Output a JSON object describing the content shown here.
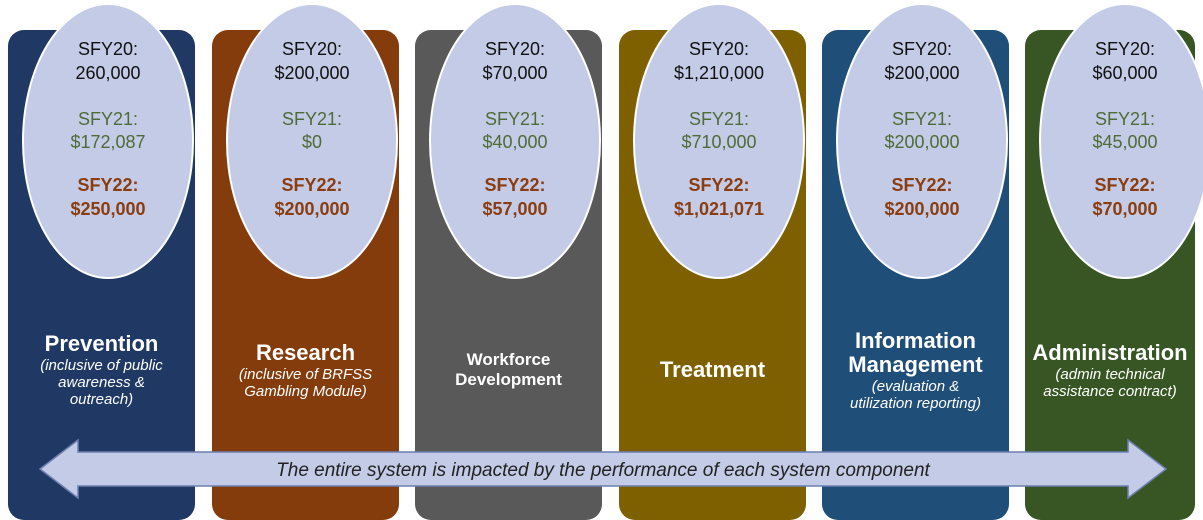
{
  "columns": [
    {
      "title": "Prevention",
      "subtitle": "(inclusive of public awareness & outreach)",
      "color": "#203864",
      "funding": [
        {
          "label": "SFY20:",
          "value": "260,000"
        },
        {
          "label": "SFY21:",
          "value": "$172,087"
        },
        {
          "label": "SFY22:",
          "value": "$250,000"
        }
      ]
    },
    {
      "title": "Research",
      "subtitle": "(inclusive of BRFSS Gambling Module)",
      "color": "#843c0c",
      "funding": [
        {
          "label": "SFY20:",
          "value": "$200,000"
        },
        {
          "label": "SFY21:",
          "value": "$0"
        },
        {
          "label": "SFY22:",
          "value": "$200,000"
        }
      ]
    },
    {
      "title": "Workforce Development",
      "subtitle": null,
      "color": "#595959",
      "funding": [
        {
          "label": "SFY20:",
          "value": "$70,000"
        },
        {
          "label": "SFY21:",
          "value": "$40,000"
        },
        {
          "label": "SFY22:",
          "value": "$57,000"
        }
      ]
    },
    {
      "title": "Treatment",
      "subtitle": null,
      "color": "#7f6000",
      "funding": [
        {
          "label": "SFY20:",
          "value": "$1,210,000"
        },
        {
          "label": "SFY21:",
          "value": "$710,000"
        },
        {
          "label": "SFY22:",
          "value": "$1,021,071"
        }
      ]
    },
    {
      "title": "Information Management",
      "subtitle": "(evaluation & utilization reporting)",
      "color": "#1f4e79",
      "funding": [
        {
          "label": "SFY20:",
          "value": "$200,000"
        },
        {
          "label": "SFY21:",
          "value": "$200,000"
        },
        {
          "label": "SFY22:",
          "value": "$200,000"
        }
      ]
    },
    {
      "title": "Administration",
      "subtitle": "(admin technical assistance contract)",
      "color": "#375623",
      "funding": [
        {
          "label": "SFY20:",
          "value": "$60,000"
        },
        {
          "label": "SFY21:",
          "value": "$45,000"
        },
        {
          "label": "SFY22:",
          "value": "$70,000"
        }
      ]
    }
  ],
  "arrow": {
    "text": "The entire system is impacted by the performance of each system component"
  }
}
